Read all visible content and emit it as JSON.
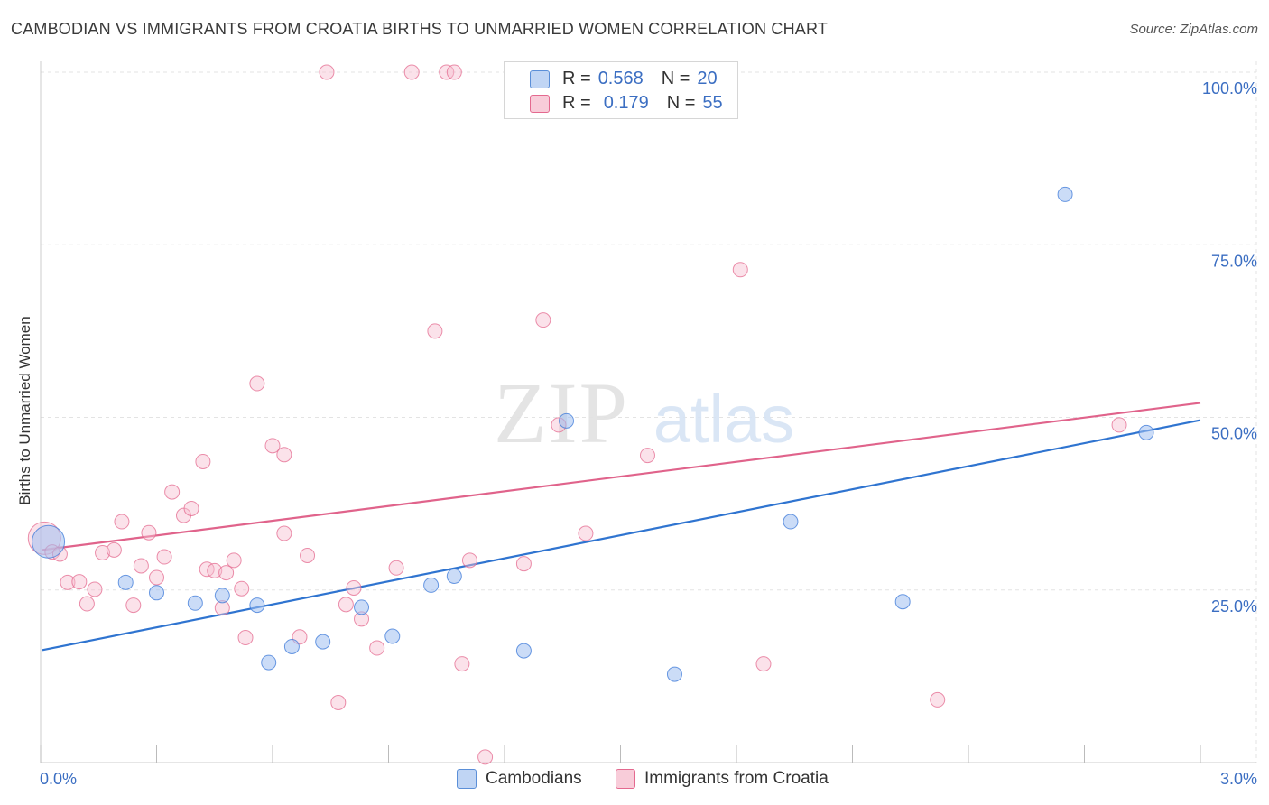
{
  "header": {
    "title": "CAMBODIAN VS IMMIGRANTS FROM CROATIA BIRTHS TO UNMARRIED WOMEN CORRELATION CHART",
    "source": "Source: ZipAtlas.com"
  },
  "watermark": {
    "zip": "ZIP",
    "atlas": "atlas"
  },
  "legend": {
    "rows": [
      {
        "r_label": "R =",
        "r_value": "0.568",
        "n_label": "N =",
        "n_value": "20"
      },
      {
        "r_label": "R =",
        "r_value": "0.179",
        "n_label": "N =",
        "n_value": "55"
      }
    ]
  },
  "bottom_legend": [
    "Cambodians",
    "Immigrants from Croatia"
  ],
  "chart_data": {
    "type": "scatter",
    "title": "CAMBODIAN VS IMMIGRANTS FROM CROATIA BIRTHS TO UNMARRIED WOMEN CORRELATION CHART",
    "ylabel": "Births to Unmarried Women",
    "xlabel": "",
    "xlim": [
      0,
      3.0
    ],
    "ylim": [
      0,
      102
    ],
    "x_tick_labels": [
      "0.0%",
      "3.0%"
    ],
    "y_ticks": [
      25,
      50,
      75,
      100
    ],
    "y_tick_labels": [
      "25.0%",
      "50.0%",
      "75.0%",
      "100.0%"
    ],
    "grid": true,
    "colors": {
      "Cambodians": "#3b78d8",
      "Immigrants from Croatia": "#e4698f",
      "axis_text": "#3b6ec2"
    },
    "series": [
      {
        "name": "Cambodians",
        "r": 0.568,
        "n": 20,
        "trend": [
          [
            0.0,
            16.3
          ],
          [
            3.0,
            49.6
          ]
        ],
        "points": [
          [
            0.02,
            32.0
          ],
          [
            0.22,
            26.1
          ],
          [
            0.3,
            24.6
          ],
          [
            0.4,
            23.1
          ],
          [
            0.47,
            24.2
          ],
          [
            0.56,
            22.8
          ],
          [
            0.59,
            14.5
          ],
          [
            0.65,
            16.8
          ],
          [
            0.73,
            17.5
          ],
          [
            0.83,
            22.5
          ],
          [
            0.91,
            18.3
          ],
          [
            1.01,
            25.7
          ],
          [
            1.07,
            27.0
          ],
          [
            1.25,
            16.2
          ],
          [
            1.36,
            49.5
          ],
          [
            1.64,
            12.8
          ],
          [
            1.94,
            34.9
          ],
          [
            2.23,
            23.3
          ],
          [
            2.65,
            82.3
          ],
          [
            2.86,
            47.8
          ]
        ]
      },
      {
        "name": "Immigrants from Croatia",
        "r": 0.179,
        "n": 55,
        "trend": [
          [
            0.0,
            30.8
          ],
          [
            3.0,
            52.1
          ]
        ],
        "points": [
          [
            0.01,
            32.5
          ],
          [
            0.03,
            30.5
          ],
          [
            0.05,
            30.2
          ],
          [
            0.07,
            26.1
          ],
          [
            0.1,
            26.2
          ],
          [
            0.12,
            23.0
          ],
          [
            0.14,
            25.1
          ],
          [
            0.16,
            30.4
          ],
          [
            0.19,
            30.8
          ],
          [
            0.21,
            34.9
          ],
          [
            0.24,
            22.8
          ],
          [
            0.26,
            28.5
          ],
          [
            0.28,
            33.3
          ],
          [
            0.3,
            26.8
          ],
          [
            0.32,
            29.8
          ],
          [
            0.34,
            39.2
          ],
          [
            0.37,
            35.8
          ],
          [
            0.39,
            36.8
          ],
          [
            0.42,
            43.6
          ],
          [
            0.43,
            28.0
          ],
          [
            0.45,
            27.8
          ],
          [
            0.47,
            22.4
          ],
          [
            0.48,
            27.5
          ],
          [
            0.5,
            29.3
          ],
          [
            0.52,
            25.2
          ],
          [
            0.53,
            18.1
          ],
          [
            0.56,
            54.9
          ],
          [
            0.6,
            45.9
          ],
          [
            0.63,
            33.2
          ],
          [
            0.63,
            44.6
          ],
          [
            0.67,
            18.2
          ],
          [
            0.69,
            30.0
          ],
          [
            0.74,
            100.0
          ],
          [
            0.77,
            8.7
          ],
          [
            0.79,
            22.9
          ],
          [
            0.81,
            25.3
          ],
          [
            0.83,
            20.8
          ],
          [
            0.87,
            16.6
          ],
          [
            0.92,
            28.2
          ],
          [
            0.96,
            100.0
          ],
          [
            1.02,
            62.5
          ],
          [
            1.05,
            100.0
          ],
          [
            1.07,
            100.0
          ],
          [
            1.09,
            14.3
          ],
          [
            1.11,
            29.3
          ],
          [
            1.15,
            0.8
          ],
          [
            1.25,
            28.8
          ],
          [
            1.3,
            64.1
          ],
          [
            1.34,
            48.9
          ],
          [
            1.41,
            33.2
          ],
          [
            1.57,
            44.5
          ],
          [
            1.81,
            71.4
          ],
          [
            1.87,
            14.3
          ],
          [
            2.32,
            9.1
          ],
          [
            2.79,
            48.9
          ]
        ]
      }
    ]
  }
}
